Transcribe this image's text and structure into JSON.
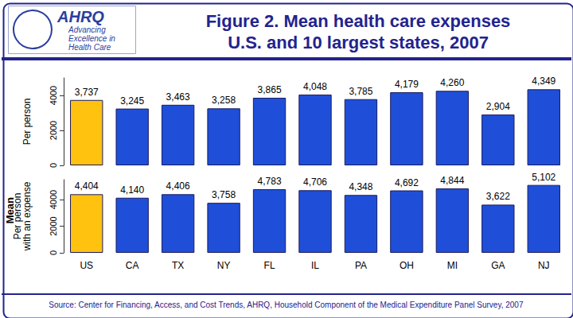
{
  "title": "Figure 2. Mean health care expenses\nU.S. and 10 largest states, 2007",
  "ylabel": "Mean",
  "source": "Source: Center for Financing, Access, and Cost Trends, AHRQ, Household Component of the Medical Expenditure Panel Survey, 2007",
  "logo": {
    "name": "AHRQ",
    "tagline": [
      "Advancing",
      "Excellence in",
      "Health Care"
    ]
  },
  "chart_data": [
    {
      "type": "bar",
      "ylabel": "Per person",
      "categories": [
        "US",
        "CA",
        "TX",
        "NY",
        "FL",
        "IL",
        "PA",
        "OH",
        "MI",
        "GA",
        "NJ"
      ],
      "values": [
        3737,
        3245,
        3463,
        3258,
        3865,
        4048,
        3785,
        4179,
        4260,
        2904,
        4349
      ],
      "value_labels": [
        "3,737",
        "3,245",
        "3,463",
        "3,258",
        "3,865",
        "4,048",
        "3,785",
        "4,179",
        "4,260",
        "2,904",
        "4,349"
      ],
      "colors": [
        "#ffc20e",
        "#1f4fd8",
        "#1f4fd8",
        "#1f4fd8",
        "#1f4fd8",
        "#1f4fd8",
        "#1f4fd8",
        "#1f4fd8",
        "#1f4fd8",
        "#1f4fd8",
        "#1f4fd8"
      ],
      "ylim": [
        0,
        5000
      ],
      "yticks": [
        0,
        2000,
        4000
      ],
      "grid": false,
      "data_labels": true,
      "tick_labels": "y"
    },
    {
      "type": "bar",
      "ylabel": "Per person\nwith an expense",
      "categories": [
        "US",
        "CA",
        "TX",
        "NY",
        "FL",
        "IL",
        "PA",
        "OH",
        "MI",
        "GA",
        "NJ"
      ],
      "values": [
        4404,
        4140,
        4406,
        3758,
        4783,
        4706,
        4348,
        4692,
        4844,
        3622,
        5102
      ],
      "value_labels": [
        "4,404",
        "4,140",
        "4,406",
        "3,758",
        "4,783",
        "4,706",
        "4,348",
        "4,692",
        "4,844",
        "3,622",
        "5,102"
      ],
      "colors": [
        "#ffc20e",
        "#1f4fd8",
        "#1f4fd8",
        "#1f4fd8",
        "#1f4fd8",
        "#1f4fd8",
        "#1f4fd8",
        "#1f4fd8",
        "#1f4fd8",
        "#1f4fd8",
        "#1f4fd8"
      ],
      "ylim": [
        0,
        5500
      ],
      "yticks": [
        0,
        2000,
        4000
      ],
      "grid": false,
      "data_labels": true
    }
  ]
}
